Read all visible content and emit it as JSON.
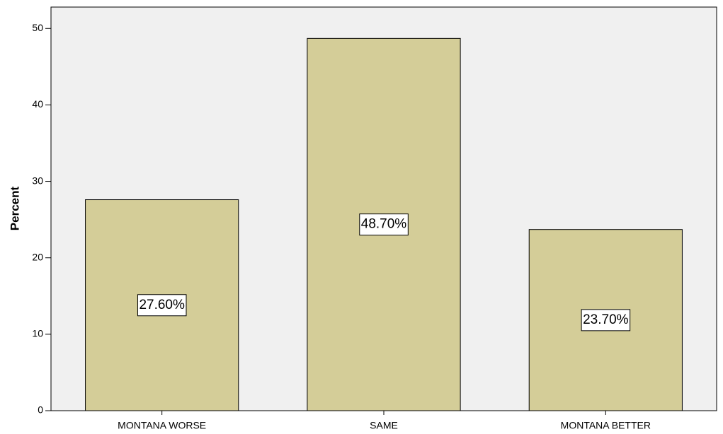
{
  "chart_data": {
    "type": "bar",
    "categories": [
      "MONTANA WORSE",
      "SAME",
      "MONTANA BETTER"
    ],
    "values": [
      27.6,
      48.7,
      23.7
    ],
    "value_labels": [
      "27.60%",
      "48.70%",
      "23.70%"
    ],
    "color": "#d4cd98",
    "y_label": "Percent",
    "ylim": [
      0,
      52.8
    ],
    "yticks": [
      0,
      10,
      20,
      30,
      40,
      50
    ],
    "grid": false
  }
}
